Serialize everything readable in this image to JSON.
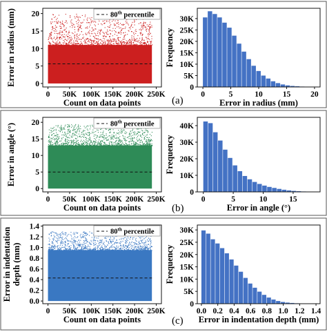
{
  "chart_data": [
    {
      "type": "scatter",
      "panel": "a",
      "color": "#cc1f1f",
      "ylabel": "Error in radius (mm)",
      "xlabel": "Count on data points",
      "x_ticks": [
        "0",
        "50K",
        "100K",
        "150K",
        "200K",
        "250K"
      ],
      "x_tick_values": [
        0,
        50000,
        100000,
        150000,
        200000,
        250000
      ],
      "y_ticks": [
        "0",
        "5",
        "10",
        "15",
        "20"
      ],
      "y_tick_values": [
        0,
        5,
        10,
        15,
        20
      ],
      "xlim": [
        -12000,
        262000
      ],
      "ylim": [
        -1,
        21.5
      ],
      "x_extent": [
        0,
        240000
      ],
      "y_dense_max": 11,
      "y_max": 20,
      "percentile_line": 5.6,
      "legend_prefix": "80",
      "legend_sup": "th",
      "legend_suffix": " percentile"
    },
    {
      "type": "bar",
      "panel": "a-hist",
      "color": "#4472c4",
      "ylabel": "Frequency",
      "xlabel": "Error in radius (mm)",
      "x_ticks": [
        "0",
        "5",
        "10",
        "15",
        "20"
      ],
      "x_tick_values": [
        0,
        5,
        10,
        15,
        20
      ],
      "y_ticks": [
        "0",
        "5K",
        "10K",
        "15K",
        "20K",
        "25K",
        "30K"
      ],
      "y_tick_values": [
        0,
        5000,
        10000,
        15000,
        20000,
        25000,
        30000
      ],
      "xlim": [
        -1,
        21
      ],
      "ylim": [
        0,
        34500
      ],
      "bin_width": 0.87,
      "bin_starts": [
        0,
        0.87,
        1.74,
        2.61,
        3.48,
        4.35,
        5.22,
        6.09,
        6.96,
        7.83,
        8.7,
        9.57,
        10.44,
        11.31,
        12.18,
        13.05,
        13.92,
        14.79,
        15.66,
        16.53,
        17.4,
        18.27,
        19.14
      ],
      "values": [
        30500,
        33200,
        32000,
        30500,
        28200,
        26000,
        22500,
        19000,
        15500,
        12200,
        9300,
        7000,
        5000,
        3700,
        2500,
        1700,
        1100,
        700,
        450,
        300,
        180,
        110,
        70
      ]
    },
    {
      "type": "scatter",
      "panel": "b",
      "color": "#2e8b57",
      "ylabel": "Error in angle (°)",
      "xlabel": "Count on data points",
      "x_ticks": [
        "0",
        "50K",
        "100K",
        "150K",
        "200K",
        "250K"
      ],
      "x_tick_values": [
        0,
        50000,
        100000,
        150000,
        200000,
        250000
      ],
      "y_ticks": [
        "0",
        "5",
        "10",
        "15",
        "20"
      ],
      "y_tick_values": [
        0,
        5,
        10,
        15,
        20
      ],
      "xlim": [
        -12000,
        262000
      ],
      "ylim": [
        -1,
        21.5
      ],
      "x_extent": [
        0,
        240000
      ],
      "y_dense_max": 13,
      "y_max": 19.5,
      "percentile_line": 5,
      "legend_prefix": "80",
      "legend_sup": "th",
      "legend_suffix": " percentile"
    },
    {
      "type": "bar",
      "panel": "b-hist",
      "color": "#4472c4",
      "ylabel": "Frequency",
      "xlabel": "Error in angle (°)",
      "x_ticks": [
        "0",
        "5",
        "10",
        "15"
      ],
      "x_tick_values": [
        0,
        5,
        10,
        15
      ],
      "y_ticks": [
        "0",
        "10K",
        "20K",
        "30K",
        "40K"
      ],
      "y_tick_values": [
        0,
        10000,
        20000,
        30000,
        40000
      ],
      "xlim": [
        -1,
        19.5
      ],
      "ylim": [
        0,
        45000
      ],
      "bin_width": 0.82,
      "bin_starts": [
        0,
        0.82,
        1.64,
        2.46,
        3.28,
        4.1,
        4.92,
        5.74,
        6.56,
        7.38,
        8.2,
        9.02,
        9.84,
        10.66,
        11.48,
        12.3,
        13.12,
        13.94,
        14.76,
        15.58,
        16.4,
        17.22,
        18.04
      ],
      "values": [
        42500,
        41500,
        36000,
        31000,
        25500,
        20500,
        16000,
        12500,
        9600,
        7600,
        6000,
        4800,
        3800,
        3000,
        2400,
        1800,
        1300,
        900,
        600,
        400,
        250,
        150,
        80
      ]
    },
    {
      "type": "scatter",
      "panel": "c",
      "color": "#3a78c2",
      "ylabel": "Error in indentation depth (mm)",
      "xlabel": "Count on data points",
      "x_ticks": [
        "0",
        "50K",
        "100K",
        "150K",
        "200K",
        "250K"
      ],
      "x_tick_values": [
        0,
        50000,
        100000,
        150000,
        200000,
        250000
      ],
      "y_ticks": [
        "0.0",
        "0.2",
        "0.4",
        "0.6",
        "0.8",
        "1.0",
        "1.2",
        "1.4"
      ],
      "y_tick_values": [
        0,
        0.2,
        0.4,
        0.6,
        0.8,
        1.0,
        1.2,
        1.4
      ],
      "xlim": [
        -12000,
        262000
      ],
      "ylim": [
        -0.05,
        1.42
      ],
      "x_extent": [
        0,
        240000
      ],
      "y_dense_max": 0.95,
      "y_max": 1.3,
      "percentile_line": 0.43,
      "legend_prefix": "80",
      "legend_sup": "th",
      "legend_suffix": " percentile"
    },
    {
      "type": "bar",
      "panel": "c-hist",
      "color": "#4472c4",
      "ylabel": "Frequency",
      "xlabel": "Error in indentation depth (mm)",
      "x_ticks": [
        "0.0",
        "0.2",
        "0.4",
        "0.6",
        "0.8",
        "1.0",
        "1.2",
        "1.4"
      ],
      "x_tick_values": [
        0,
        0.2,
        0.4,
        0.6,
        0.8,
        1.0,
        1.2,
        1.4
      ],
      "y_ticks": [
        "0",
        "5K",
        "10K",
        "15K",
        "20K",
        "25K",
        "30K"
      ],
      "y_tick_values": [
        0,
        5000,
        10000,
        15000,
        20000,
        25000,
        30000
      ],
      "xlim": [
        -0.05,
        1.45
      ],
      "ylim": [
        0,
        32000
      ],
      "bin_width": 0.057,
      "bin_starts": [
        0,
        0.057,
        0.114,
        0.171,
        0.228,
        0.285,
        0.342,
        0.399,
        0.456,
        0.513,
        0.57,
        0.627,
        0.684,
        0.741,
        0.798,
        0.855,
        0.912,
        0.969,
        1.026,
        1.083,
        1.14,
        1.197,
        1.254
      ],
      "values": [
        29800,
        28500,
        26200,
        24500,
        22600,
        20500,
        18000,
        15500,
        13000,
        10500,
        8200,
        6500,
        4900,
        3600,
        2500,
        1700,
        1100,
        700,
        450,
        300,
        180,
        100,
        60
      ]
    }
  ],
  "panel_labels": [
    "(a)",
    "(b)",
    "(c)"
  ]
}
